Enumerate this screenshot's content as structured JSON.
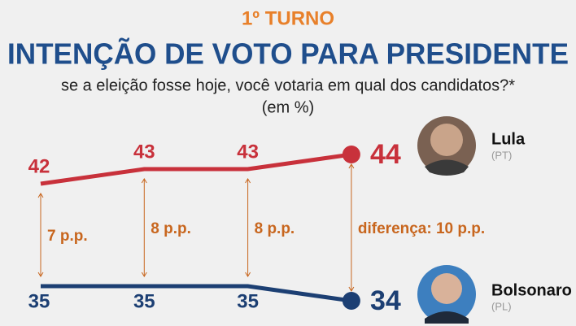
{
  "chart_data": {
    "type": "line",
    "kicker": "1º TURNO",
    "title": "INTENÇÃO DE VOTO PARA PRESIDENTE",
    "subtitle": "se a eleição fosse hoje, você votaria em qual dos candidatos?*",
    "unit_note": "(em %)",
    "categories": [
      null,
      null,
      null,
      null
    ],
    "ylim": [
      33,
      45
    ],
    "series": [
      {
        "name": "Lula",
        "party": "(PT)",
        "color": "#c8313b",
        "values": [
          42,
          43,
          43,
          44
        ]
      },
      {
        "name": "Bolsonaro",
        "party": "(PL)",
        "color": "#1c3f73",
        "values": [
          35,
          35,
          35,
          34
        ]
      }
    ],
    "annotations": [
      "7 p.p.",
      "8 p.p.",
      "8 p.p.",
      "diferença: 10 p.p."
    ],
    "annotation_color": "#c8661e"
  }
}
